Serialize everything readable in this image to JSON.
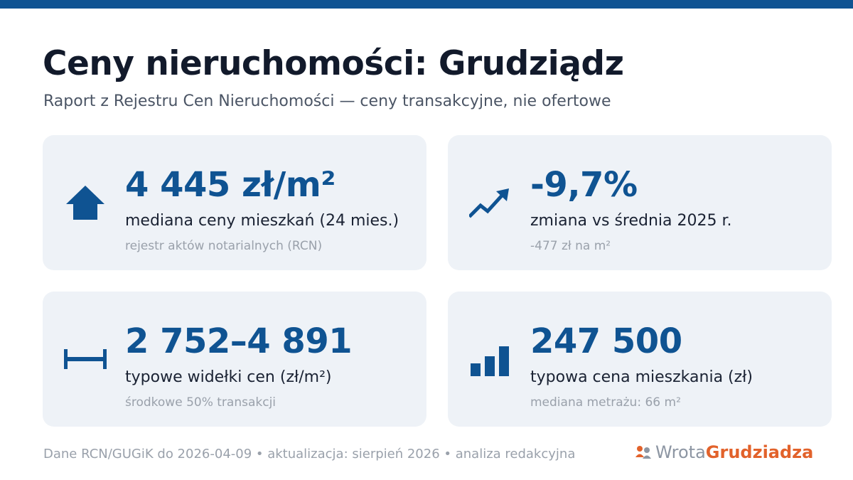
{
  "header": {
    "title": "Ceny nieruchomości: Grudziądz",
    "subtitle": "Raport z Rejestru Cen Nieruchomości — ceny transakcyjne, nie ofertowe"
  },
  "colors": {
    "accent": "#0f5392",
    "card_bg": "#eef2f7",
    "logo_orange": "#e2622b"
  },
  "cards": [
    {
      "icon": "house-icon",
      "value": "4 445 zł/m²",
      "label": "mediana ceny mieszkań (24 mies.)",
      "note": "rejestr aktów notarialnych (RCN)"
    },
    {
      "icon": "trend-arrow-icon",
      "value": "-9,7%",
      "label": "zmiana vs średnia 2025 r.",
      "note": "-477 zł na m²"
    },
    {
      "icon": "range-icon",
      "value": "2 752–4 891",
      "label": "typowe widełki cen (zł/m²)",
      "note": "środkowe 50% transakcji"
    },
    {
      "icon": "bar-chart-icon",
      "value": "247 500",
      "label": "typowa cena mieszkania (zł)",
      "note": "mediana metrażu: 66 m²"
    }
  ],
  "footer": {
    "text": "Dane RCN/GUGiK do 2026-04-09 • aktualizacja: sierpień 2026 • analiza redakcyjna"
  },
  "logo": {
    "part1": "Wrota",
    "part2": "Grudziadza"
  }
}
